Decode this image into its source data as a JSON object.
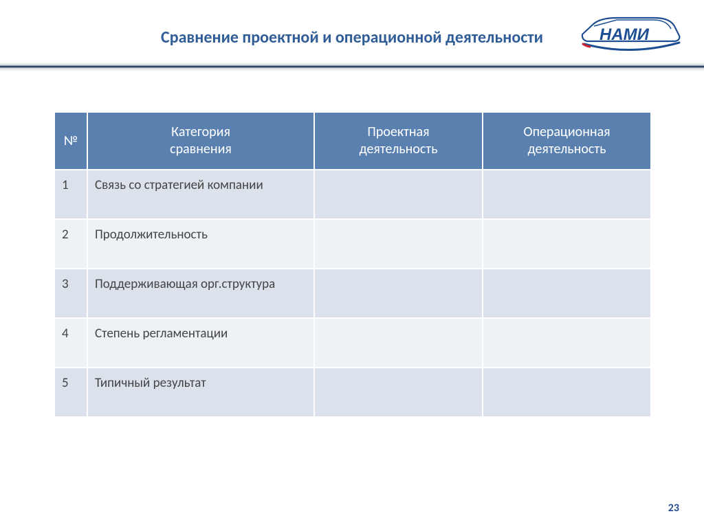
{
  "title": "Сравнение проектной и операционной деятельности",
  "logo": {
    "text": "НАМИ",
    "stroke": "#1e4e92",
    "accent": "#d02030"
  },
  "page_number": "23",
  "table": {
    "columns": [
      {
        "key": "num",
        "label": "№"
      },
      {
        "key": "cat",
        "label": "Категория\nсравнения"
      },
      {
        "key": "proj",
        "label": "Проектная\nдеятельность"
      },
      {
        "key": "oper",
        "label": "Операционная\nдеятельность"
      }
    ],
    "rows": [
      {
        "num": "1",
        "cat": "Связь со стратегией компании",
        "proj": "",
        "oper": ""
      },
      {
        "num": "2",
        "cat": "Продолжительность",
        "proj": "",
        "oper": ""
      },
      {
        "num": "3",
        "cat": "Поддерживающая орг.структура",
        "proj": "",
        "oper": ""
      },
      {
        "num": "4",
        "cat": "Степень регламентации",
        "proj": "",
        "oper": ""
      },
      {
        "num": "5",
        "cat": "Типичный результат",
        "proj": "",
        "oper": ""
      }
    ],
    "header_bg": "#5a80b0",
    "row_odd_bg": "#dce2ec",
    "row_even_bg": "#eef1f6",
    "border_color": "#ffffff",
    "header_fontsize": 20,
    "cell_fontsize": 19
  }
}
